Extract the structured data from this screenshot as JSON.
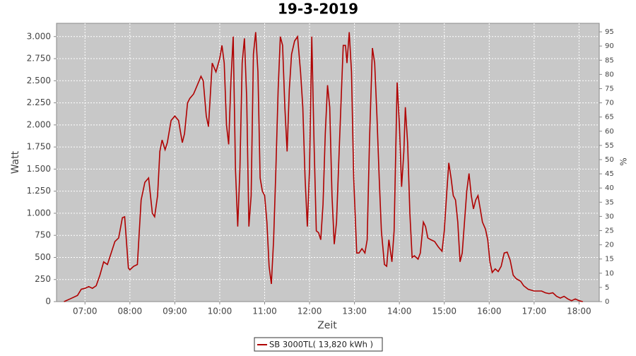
{
  "chart_data": {
    "type": "line",
    "title": "19-3-2019",
    "x_label": "Zeit",
    "y_label": "Watt",
    "y2_label": "%",
    "x": [
      "06:32",
      "06:40",
      "06:50",
      "06:55",
      "07:00",
      "07:05",
      "07:10",
      "07:15",
      "07:20",
      "07:25",
      "07:30",
      "07:35",
      "07:40",
      "07:45",
      "07:50",
      "07:53",
      "07:58",
      "08:00",
      "08:05",
      "08:10",
      "08:15",
      "08:20",
      "08:25",
      "08:30",
      "08:33",
      "08:37",
      "08:40",
      "08:43",
      "08:47",
      "08:50",
      "08:55",
      "09:00",
      "09:05",
      "09:08",
      "09:10",
      "09:13",
      "09:17",
      "09:20",
      "09:25",
      "09:30",
      "09:35",
      "09:38",
      "09:42",
      "09:45",
      "09:50",
      "09:55",
      "10:00",
      "10:03",
      "10:06",
      "10:09",
      "10:12",
      "10:15",
      "10:18",
      "10:21",
      "10:24",
      "10:27",
      "10:30",
      "10:33",
      "10:36",
      "10:39",
      "10:42",
      "10:45",
      "10:48",
      "10:51",
      "10:54",
      "10:57",
      "11:00",
      "11:03",
      "11:06",
      "11:09",
      "11:12",
      "11:15",
      "11:18",
      "11:21",
      "11:24",
      "11:27",
      "11:30",
      "11:33",
      "11:36",
      "11:40",
      "11:44",
      "11:48",
      "11:51",
      "11:54",
      "11:57",
      "12:00",
      "12:03",
      "12:06",
      "12:09",
      "12:12",
      "12:15",
      "12:18",
      "12:21",
      "12:24",
      "12:27",
      "12:30",
      "12:33",
      "12:36",
      "12:40",
      "12:45",
      "12:48",
      "12:50",
      "12:53",
      "12:56",
      "12:59",
      "13:03",
      "13:06",
      "13:10",
      "13:14",
      "13:17",
      "13:20",
      "13:24",
      "13:27",
      "13:30",
      "13:33",
      "13:36",
      "13:40",
      "13:43",
      "13:46",
      "13:50",
      "13:53",
      "13:57",
      "14:00",
      "14:03",
      "14:06",
      "14:08",
      "14:11",
      "14:14",
      "14:17",
      "14:20",
      "14:25",
      "14:28",
      "14:32",
      "14:35",
      "14:38",
      "14:42",
      "14:47",
      "14:52",
      "14:57",
      "15:00",
      "15:03",
      "15:06",
      "15:09",
      "15:12",
      "15:15",
      "15:18",
      "15:21",
      "15:24",
      "15:27",
      "15:30",
      "15:33",
      "15:36",
      "15:39",
      "15:42",
      "15:45",
      "15:48",
      "15:51",
      "15:55",
      "15:58",
      "16:01",
      "16:04",
      "16:08",
      "16:12",
      "16:16",
      "16:20",
      "16:24",
      "16:28",
      "16:32",
      "16:36",
      "16:42",
      "16:46",
      "16:52",
      "17:00",
      "17:10",
      "17:15",
      "17:20",
      "17:25",
      "17:30",
      "17:35",
      "17:40",
      "17:45",
      "17:50",
      "17:55",
      "18:00",
      "18:05"
    ],
    "series": [
      {
        "name": "SB 3000TL( 13,820 kWh )",
        "color": "#b00000",
        "values": [
          0,
          30,
          70,
          140,
          150,
          170,
          150,
          180,
          300,
          450,
          420,
          550,
          680,
          720,
          950,
          960,
          380,
          360,
          400,
          420,
          1150,
          1350,
          1400,
          1000,
          960,
          1200,
          1700,
          1830,
          1720,
          1800,
          2050,
          2100,
          2050,
          1900,
          1800,
          1900,
          2250,
          2300,
          2350,
          2450,
          2550,
          2500,
          2100,
          1980,
          2700,
          2600,
          2750,
          2900,
          2700,
          2000,
          1780,
          2500,
          3000,
          1500,
          850,
          1500,
          2700,
          2980,
          2300,
          850,
          1200,
          2800,
          3050,
          2600,
          1400,
          1250,
          1200,
          900,
          400,
          200,
          700,
          1500,
          2400,
          3000,
          2900,
          2200,
          1700,
          2400,
          2800,
          2950,
          3000,
          2600,
          2200,
          1400,
          850,
          1500,
          3000,
          1800,
          800,
          780,
          700,
          1100,
          1900,
          2450,
          2200,
          1200,
          650,
          900,
          1800,
          2900,
          2900,
          2700,
          3050,
          2600,
          1400,
          550,
          550,
          600,
          550,
          700,
          1800,
          2870,
          2700,
          2100,
          1400,
          800,
          420,
          400,
          700,
          450,
          800,
          2480,
          2000,
          1300,
          1700,
          2200,
          1800,
          1000,
          500,
          520,
          480,
          550,
          900,
          850,
          720,
          700,
          680,
          620,
          570,
          800,
          1200,
          1570,
          1400,
          1200,
          1150,
          900,
          450,
          550,
          900,
          1250,
          1450,
          1200,
          1050,
          1150,
          1200,
          1050,
          900,
          820,
          700,
          450,
          330,
          370,
          340,
          400,
          550,
          560,
          470,
          300,
          260,
          230,
          180,
          140,
          120,
          120,
          100,
          90,
          100,
          60,
          40,
          60,
          30,
          10,
          30,
          10,
          0
        ]
      }
    ],
    "xlim": [
      "06:22",
      "18:27"
    ],
    "xticks": [
      "07:00",
      "08:00",
      "09:00",
      "10:00",
      "11:00",
      "12:00",
      "13:00",
      "14:00",
      "15:00",
      "16:00",
      "17:00",
      "18:00"
    ],
    "ylim": [
      0,
      3150
    ],
    "yticks": [
      0,
      250,
      500,
      750,
      {
        "value": 1000,
        "label": "1.000"
      },
      {
        "value": 1250,
        "label": "1.250"
      },
      {
        "value": 1500,
        "label": "1.500"
      },
      {
        "value": 1750,
        "label": "1.750"
      },
      {
        "value": 2000,
        "label": "2.000"
      },
      {
        "value": 2250,
        "label": "2.250"
      },
      {
        "value": 2500,
        "label": "2.500"
      },
      {
        "value": 2750,
        "label": "2.750"
      },
      {
        "value": 3000,
        "label": "3.000"
      }
    ],
    "y2lim": [
      0,
      98
    ],
    "y2ticks": [
      0,
      5,
      10,
      15,
      20,
      25,
      30,
      35,
      40,
      45,
      50,
      55,
      60,
      65,
      70,
      75,
      80,
      85,
      90,
      95
    ],
    "grid": true,
    "legend": "bottom"
  }
}
